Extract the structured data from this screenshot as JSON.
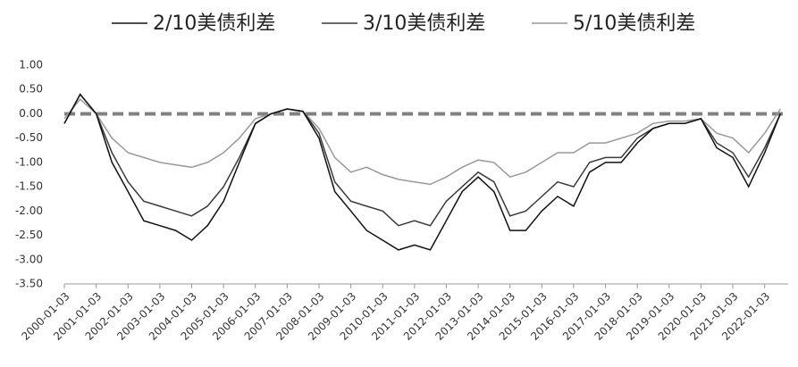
{
  "chart_data": {
    "type": "line",
    "series": [
      {
        "name": "2/10美债利差",
        "color": "#111111",
        "values": [
          -0.2,
          0.4,
          0.0,
          -1.0,
          -1.6,
          -2.2,
          -2.3,
          -2.4,
          -2.6,
          -2.3,
          -1.8,
          -1.0,
          -0.2,
          0.0,
          0.1,
          0.05,
          -0.5,
          -1.6,
          -2.0,
          -2.4,
          -2.6,
          -2.8,
          -2.7,
          -2.8,
          -2.2,
          -1.6,
          -1.3,
          -1.6,
          -2.4,
          -2.4,
          -2.0,
          -1.7,
          -1.9,
          -1.2,
          -1.0,
          -1.0,
          -0.6,
          -0.3,
          -0.2,
          -0.2,
          -0.1,
          -0.7,
          -0.9,
          -1.5,
          -0.8,
          0.0
        ]
      },
      {
        "name": "3/10美债利差",
        "color": "#3a3a3a",
        "values": [
          -0.2,
          0.4,
          0.0,
          -0.8,
          -1.4,
          -1.8,
          -1.9,
          -2.0,
          -2.1,
          -1.9,
          -1.5,
          -0.9,
          -0.2,
          0.0,
          0.1,
          0.05,
          -0.4,
          -1.4,
          -1.8,
          -1.9,
          -2.0,
          -2.3,
          -2.2,
          -2.3,
          -1.8,
          -1.5,
          -1.2,
          -1.4,
          -2.1,
          -2.0,
          -1.7,
          -1.4,
          -1.5,
          -1.0,
          -0.9,
          -0.9,
          -0.5,
          -0.3,
          -0.2,
          -0.2,
          -0.1,
          -0.6,
          -0.8,
          -1.3,
          -0.7,
          0.0
        ]
      },
      {
        "name": "5/10美债利差",
        "color": "#999999",
        "values": [
          -0.1,
          0.3,
          0.0,
          -0.5,
          -0.8,
          -0.9,
          -1.0,
          -1.05,
          -1.1,
          -1.0,
          -0.8,
          -0.5,
          -0.1,
          0.0,
          0.1,
          0.05,
          -0.3,
          -0.9,
          -1.2,
          -1.1,
          -1.25,
          -1.35,
          -1.4,
          -1.45,
          -1.3,
          -1.1,
          -0.95,
          -1.0,
          -1.3,
          -1.2,
          -1.0,
          -0.8,
          -0.8,
          -0.6,
          -0.6,
          -0.5,
          -0.4,
          -0.2,
          -0.15,
          -0.15,
          -0.1,
          -0.4,
          -0.5,
          -0.8,
          -0.4,
          0.1
        ]
      }
    ],
    "x": [
      "2000-01-03",
      "2000-07-03",
      "2001-01-03",
      "2001-07-03",
      "2002-01-03",
      "2002-07-03",
      "2003-01-03",
      "2003-07-03",
      "2004-01-03",
      "2004-07-03",
      "2005-01-03",
      "2005-07-03",
      "2006-01-03",
      "2006-07-03",
      "2007-01-03",
      "2007-07-03",
      "2008-01-03",
      "2008-07-03",
      "2009-01-03",
      "2009-07-03",
      "2010-01-03",
      "2010-07-03",
      "2011-01-03",
      "2011-07-03",
      "2012-01-03",
      "2012-07-03",
      "2013-01-03",
      "2013-07-03",
      "2014-01-03",
      "2014-07-03",
      "2015-01-03",
      "2015-07-03",
      "2016-01-03",
      "2016-07-03",
      "2017-01-03",
      "2017-07-03",
      "2018-01-03",
      "2018-07-03",
      "2019-01-03",
      "2019-07-03",
      "2020-01-03",
      "2020-07-03",
      "2021-01-03",
      "2021-07-03",
      "2022-01-03",
      "2022-07-03"
    ],
    "xlim": [
      "2000-01-03",
      "2022-09-30"
    ],
    "xticks": [
      "2000-01-03",
      "2001-01-03",
      "2002-01-03",
      "2003-01-03",
      "2004-01-03",
      "2005-01-03",
      "2006-01-03",
      "2007-01-03",
      "2008-01-03",
      "2009-01-03",
      "2010-01-03",
      "2011-01-03",
      "2012-01-03",
      "2013-01-03",
      "2014-01-03",
      "2015-01-03",
      "2016-01-03",
      "2017-01-03",
      "2018-01-03",
      "2019-01-03",
      "2020-01-03",
      "2021-01-03",
      "2022-01-03"
    ],
    "ylim": [
      -3.5,
      1.0
    ],
    "yticks": [
      {
        "value": 1.0,
        "label": "1.00"
      },
      {
        "value": 0.5,
        "label": "0.50"
      },
      {
        "value": 0.0,
        "label": "0.00"
      },
      {
        "value": -0.5,
        "label": "-0.50"
      },
      {
        "value": -1.0,
        "label": "-1.00"
      },
      {
        "value": -1.5,
        "label": "-1.50"
      },
      {
        "value": -2.0,
        "label": "-2.00"
      },
      {
        "value": -2.5,
        "label": "-2.50"
      },
      {
        "value": -3.0,
        "label": "-3.00"
      },
      {
        "value": -3.5,
        "label": "-3.50"
      }
    ],
    "reference_line": {
      "value": 0,
      "color": "#808080"
    },
    "legend": "top"
  }
}
